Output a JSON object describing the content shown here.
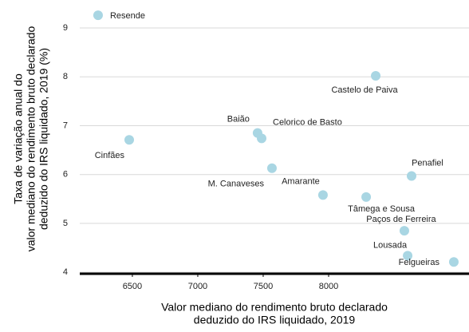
{
  "chart_data": {
    "type": "scatter",
    "x_label": [
      "Valor mediano do rendimento bruto declarado",
      "deduzido do IRS liquidado, 2019"
    ],
    "y_label": [
      "Taxa de variação anual do",
      "valor mediano do rendimento bruto declarado",
      "deduzido do IRS liquidado, 2019 (%)"
    ],
    "labels": [
      "Resende",
      "Cinfães",
      "Baião",
      "Celorico de Basto",
      "M. Canaveses",
      "Amarante",
      "Tâmega e Sousa",
      "Castelo de Paiva",
      "Penafiel",
      "Paços de Ferreira",
      "Lousada",
      "Felgueiras"
    ],
    "x": [
      6238,
      6476,
      7457,
      7488,
      7567,
      7957,
      8287,
      8360,
      8634,
      8579,
      8604,
      8957
    ],
    "values": [
      9.26,
      6.71,
      6.85,
      6.74,
      6.13,
      5.58,
      5.54,
      8.02,
      5.97,
      4.85,
      4.34,
      4.21
    ],
    "color": "#a9d6e3",
    "xlim": [
      6098,
      9073
    ],
    "xticks": [
      6500,
      7000,
      7500,
      8000
    ],
    "ylim": [
      3.97,
      9.49
    ],
    "yticks": [
      4,
      5,
      6,
      7,
      8,
      9
    ],
    "grid": true
  }
}
